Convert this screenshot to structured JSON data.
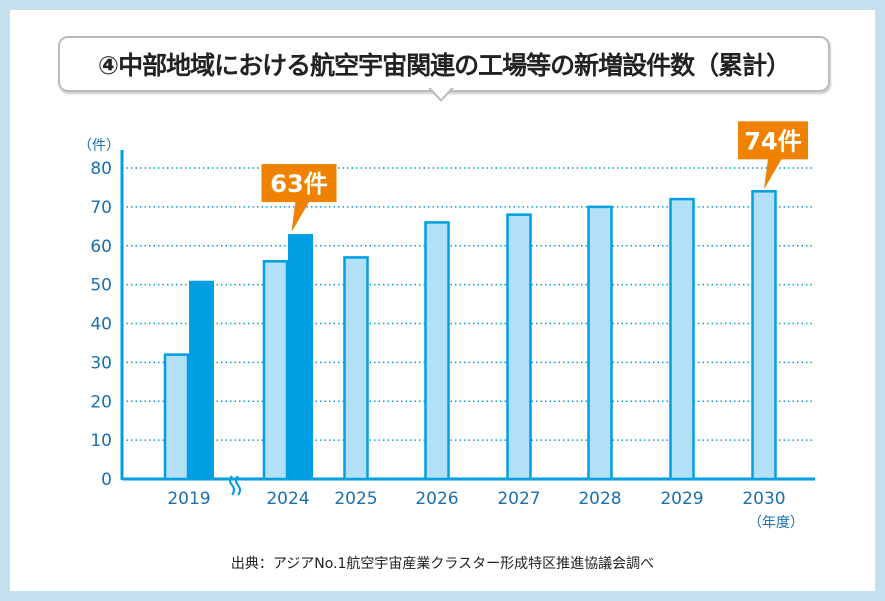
{
  "title": "④中部地域における航空宇宙関連の工場等の新増設件数（累計）",
  "source": "出典：アジアNo.1航空宇宙産業クラスター形成特区推進協議会調べ",
  "chart_data": {
    "type": "bar",
    "title": "④中部地域における航空宇宙関連の工場等の新増設件数（累計）",
    "ylabel": "（件）",
    "xlabel": "（年度）",
    "ylim": [
      0,
      80
    ],
    "yticks": [
      0,
      10,
      20,
      30,
      40,
      50,
      60,
      70,
      80
    ],
    "grid": true,
    "axis_break_after": "2019",
    "categories": [
      "2019",
      "2024",
      "2025",
      "2026",
      "2027",
      "2028",
      "2029",
      "2030"
    ],
    "series": [
      {
        "values": [
          32,
          56,
          57,
          66,
          68,
          70,
          72,
          74
        ],
        "color": "#b3e0f6",
        "border": "#009fe3"
      },
      {
        "values": [
          51,
          63,
          null,
          null,
          null,
          null,
          null,
          null
        ],
        "color": "#009fe3"
      }
    ],
    "annotations": [
      {
        "category": "2024",
        "text": "63件",
        "value": 63
      },
      {
        "category": "2030",
        "text": "74件",
        "value": 74
      }
    ],
    "colors": {
      "axis": "#009fe3",
      "label": "#1a6fb0",
      "callout": "#ef8200"
    }
  }
}
